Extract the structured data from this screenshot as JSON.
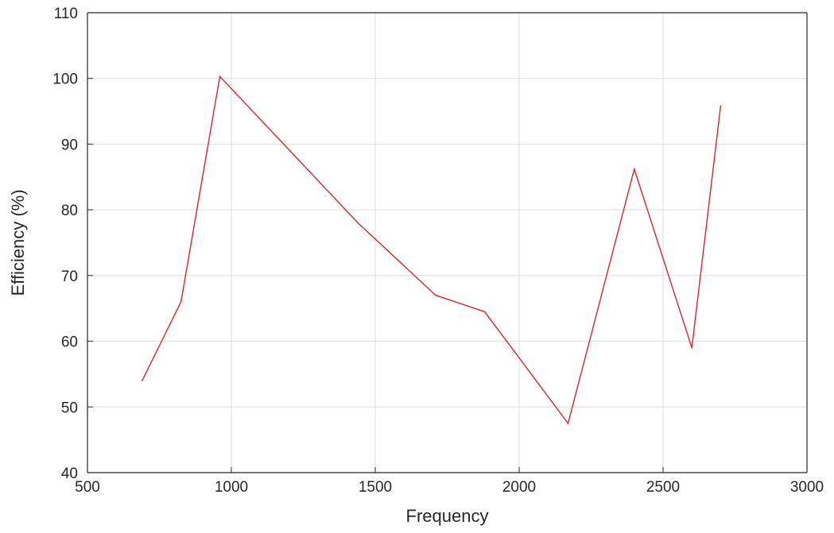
{
  "chart_data": {
    "type": "line",
    "title": "",
    "xlabel": "Frequency",
    "ylabel": "Efficiency (%)",
    "xlim": [
      500,
      3000
    ],
    "ylim": [
      40,
      110
    ],
    "xticks": [
      "500",
      "1000",
      "1500",
      "2000",
      "2500",
      "3000"
    ],
    "yticks": [
      "40",
      "50",
      "60",
      "70",
      "80",
      "90",
      "100",
      "110"
    ],
    "grid": true,
    "series": [
      {
        "color": "#d62728",
        "x": [
          690,
          825,
          960,
          1440,
          1710,
          1880,
          2170,
          2400,
          2600,
          2700
        ],
        "y": [
          54,
          66,
          100.3,
          78,
          67,
          64.5,
          47.5,
          86.2,
          59,
          95.8
        ]
      }
    ]
  }
}
